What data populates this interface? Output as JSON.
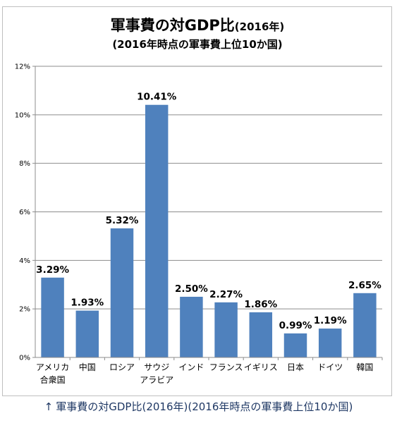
{
  "chart_data": {
    "type": "bar",
    "title": "軍事費の対GDP比",
    "title_suffix": "(2016年)",
    "subtitle": "(2016年時点の軍事費上位10か国)",
    "categories": [
      [
        "アメリカ",
        "合衆国"
      ],
      [
        "中国"
      ],
      [
        "ロシア"
      ],
      [
        "サウジ",
        "アラビア"
      ],
      [
        "インド"
      ],
      [
        "フランス"
      ],
      [
        "イギリス"
      ],
      [
        "日本"
      ],
      [
        "ドイツ"
      ],
      [
        "韓国"
      ]
    ],
    "values": [
      3.29,
      1.93,
      5.32,
      10.41,
      2.5,
      2.27,
      1.86,
      0.99,
      1.19,
      2.65
    ],
    "data_labels": [
      "3.29%",
      "1.93%",
      "5.32%",
      "10.41%",
      "2.50%",
      "2.27%",
      "1.86%",
      "0.99%",
      "1.19%",
      "2.65%"
    ],
    "ylim": [
      0,
      12
    ],
    "yticks": [
      0,
      2,
      4,
      6,
      8,
      10,
      12
    ],
    "ytick_labels": [
      "0%",
      "2%",
      "4%",
      "6%",
      "8%",
      "10%",
      "12%"
    ],
    "grid": true,
    "bar_color": "#4f81bd",
    "grid_color": "#8c8c8c"
  },
  "caption": {
    "arrow": "↑",
    "text": "軍事費の対GDP比(2016年)(2016年時点の軍事費上位10か国)"
  }
}
